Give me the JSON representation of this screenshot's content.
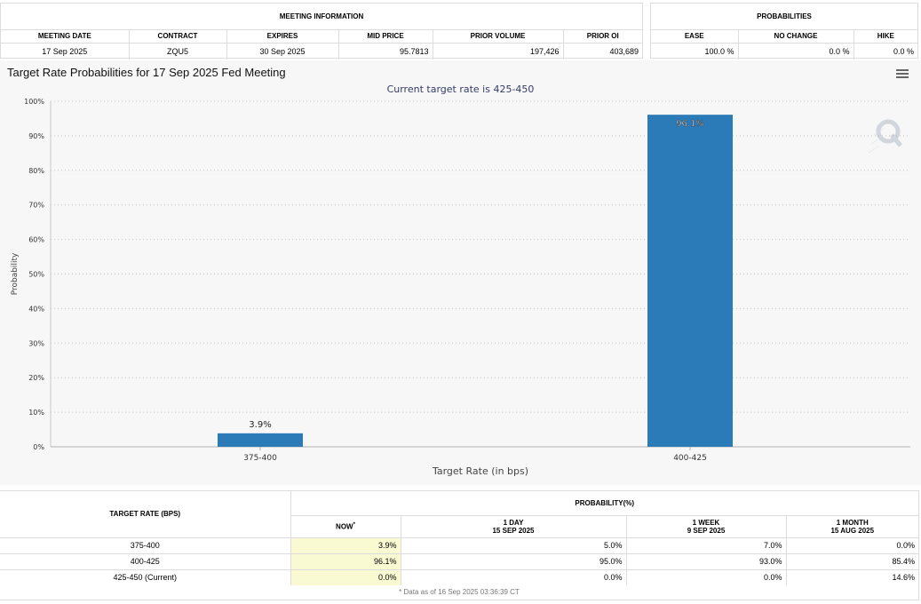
{
  "meeting_info": {
    "heading": "MEETING INFORMATION",
    "columns": [
      "MEETING DATE",
      "CONTRACT",
      "EXPIRES",
      "MID PRICE",
      "PRIOR VOLUME",
      "PRIOR OI"
    ],
    "values": [
      "17 Sep 2025",
      "ZQU5",
      "30 Sep 2025",
      "95.7813",
      "197,426",
      "403,689"
    ]
  },
  "probabilities": {
    "heading": "PROBABILITIES",
    "columns": [
      "EASE",
      "NO CHANGE",
      "HIKE"
    ],
    "values": [
      "100.0 %",
      "0.0 %",
      "0.0 %"
    ]
  },
  "chart_data": {
    "type": "bar",
    "title": "Target Rate Probabilities for 17 Sep 2025 Fed Meeting",
    "subtitle": "Current target rate is 425-450",
    "categories": [
      "375-400",
      "400-425"
    ],
    "values": [
      3.9,
      96.1
    ],
    "data_labels": [
      "3.9%",
      "96.1%"
    ],
    "xlabel": "Target Rate (in bps)",
    "ylabel": "Probability",
    "ylim": [
      0,
      100
    ],
    "yticks": [
      0,
      10,
      20,
      30,
      40,
      50,
      60,
      70,
      80,
      90,
      100
    ],
    "ytick_labels": [
      "0%",
      "10%",
      "20%",
      "30%",
      "40%",
      "50%",
      "60%",
      "70%",
      "80%",
      "90%",
      "100%"
    ],
    "grid": true,
    "bar_color": "#2b7bb9"
  },
  "prob_table": {
    "row_header": "TARGET RATE (BPS)",
    "group_header": "PROBABILITY(%)",
    "now_label": "NOW",
    "now_mark": "*",
    "periods": [
      {
        "label": "1 DAY",
        "date": "15 SEP 2025"
      },
      {
        "label": "1 WEEK",
        "date": "9 SEP 2025"
      },
      {
        "label": "1 MONTH",
        "date": "15 AUG 2025"
      }
    ],
    "rows": [
      {
        "rate": "375-400",
        "now": "3.9%",
        "d1": "5.0%",
        "w1": "7.0%",
        "m1": "0.0%"
      },
      {
        "rate": "400-425",
        "now": "96.1%",
        "d1": "95.0%",
        "w1": "93.0%",
        "m1": "85.4%"
      },
      {
        "rate": "425-450 (Current)",
        "now": "0.0%",
        "d1": "0.0%",
        "w1": "0.0%",
        "m1": "14.6%"
      }
    ],
    "footnote": "* Data as of 16 Sep 2025 03:36:39 CT"
  },
  "colors": {
    "accent": "#2b7bb9",
    "now_highlight": "#fafad2",
    "subtitle": "#333d66"
  },
  "icons": {
    "menu": "hamburger-menu-icon",
    "watermark": "q-logo-watermark"
  }
}
